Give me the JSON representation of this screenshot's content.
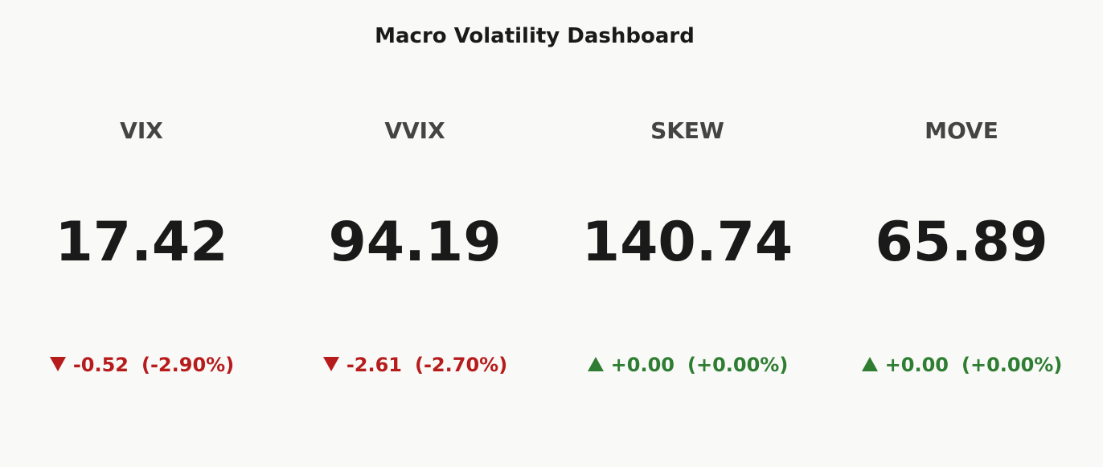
{
  "title": "Macro Volatility Dashboard",
  "increasing_color": "#2e7d32",
  "decreasing_color": "#b71c1c",
  "indicators": [
    {
      "name": "VIX",
      "value": 17.42,
      "delta": {
        "value": -0.52,
        "label": "-0.52"
      },
      "delta_pct": {
        "value": -2.9,
        "label": "(-2.90%)"
      }
    },
    {
      "name": "VVIX",
      "value": 94.19,
      "delta": {
        "value": -2.61,
        "label": "-2.61"
      },
      "delta_pct": {
        "value": -2.7,
        "label": "(-2.70%)"
      }
    },
    {
      "name": "SKEW",
      "value": 140.74,
      "delta": {
        "value": 0,
        "label": "+0.00"
      },
      "delta_pct": {
        "value": 0,
        "label": "(+0.00%)"
      }
    },
    {
      "name": "MOVE",
      "value": 65.89,
      "delta": {
        "value": 0,
        "label": "+0.00"
      },
      "delta_pct": {
        "value": 0,
        "label": "(+0.00%)"
      }
    }
  ]
}
